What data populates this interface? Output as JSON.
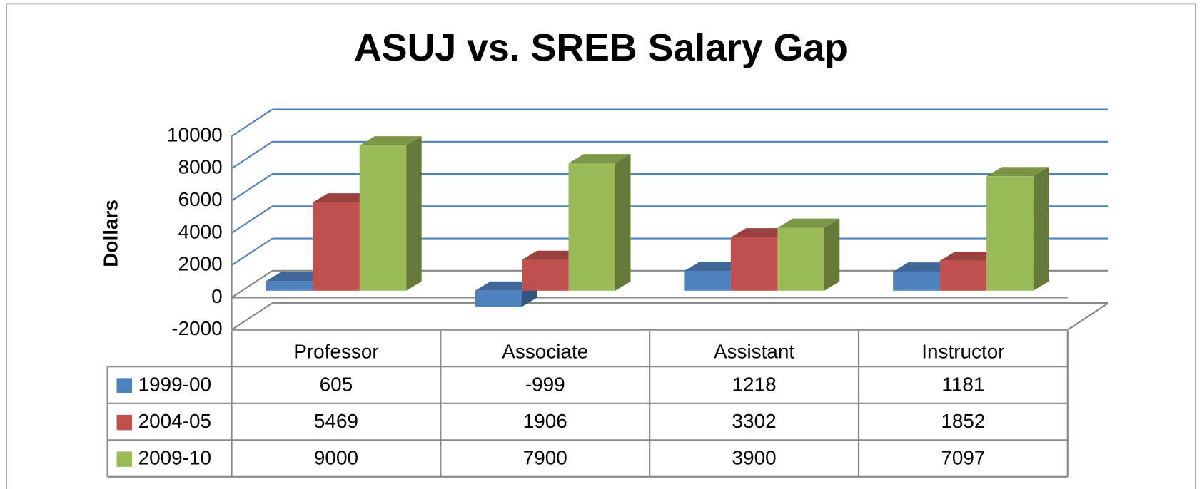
{
  "chart_data": {
    "type": "bar",
    "title": "ASUJ vs. SREB Salary Gap",
    "ylabel": "Dollars",
    "categories": [
      "Professor",
      "Associate",
      "Assistant",
      "Instructor"
    ],
    "series": [
      {
        "name": "1999-00",
        "color": "#4f81bd",
        "values": [
          605,
          -999,
          1218,
          1181
        ]
      },
      {
        "name": "2004-05",
        "color": "#c0504d",
        "values": [
          5469,
          1906,
          3302,
          1852
        ]
      },
      {
        "name": "2009-10",
        "color": "#9bbb59",
        "values": [
          9000,
          7900,
          3900,
          7097
        ]
      }
    ],
    "ylim": [
      -2000,
      10000
    ],
    "yticks": [
      -2000,
      0,
      2000,
      4000,
      6000,
      8000,
      10000
    ],
    "grid": true,
    "data_table": true
  }
}
